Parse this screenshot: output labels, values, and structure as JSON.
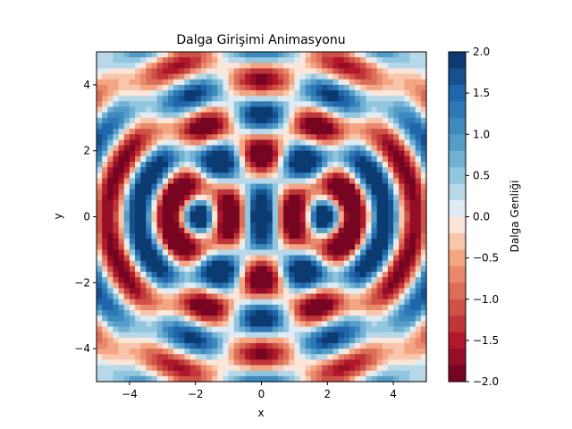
{
  "chart_data": {
    "type": "heatmap",
    "title": "Dalga Girişimi Animasyonu",
    "xlabel": "x",
    "ylabel": "y",
    "xlim": [
      -5,
      5
    ],
    "ylim": [
      -5,
      5
    ],
    "x_ticks": [
      -4,
      -2,
      0,
      2,
      4
    ],
    "y_ticks": [
      -4,
      -2,
      0,
      2,
      4
    ],
    "x_tick_labels": [
      "−4",
      "−2",
      "0",
      "2",
      "4"
    ],
    "y_tick_labels": [
      "−4",
      "−2",
      "0",
      "2",
      "4"
    ],
    "sources": [
      {
        "x": -2,
        "y": 0
      },
      {
        "x": 2,
        "y": 0
      }
    ],
    "colorbar": {
      "label": "Dalga Genliği",
      "colormap": "RdBu",
      "vmin": -2.0,
      "vmax": 2.0,
      "levels": 20,
      "ticks": [
        2.0,
        1.5,
        1.0,
        0.5,
        0.0,
        -0.5,
        -1.0,
        -1.5,
        -2.0
      ],
      "tick_labels": [
        "2.0",
        "1.5",
        "1.0",
        "0.5",
        "0.0",
        "−0.5",
        "−1.0",
        "−1.5",
        "−2.0"
      ]
    },
    "grid": false,
    "grid_resolution": 60
  }
}
